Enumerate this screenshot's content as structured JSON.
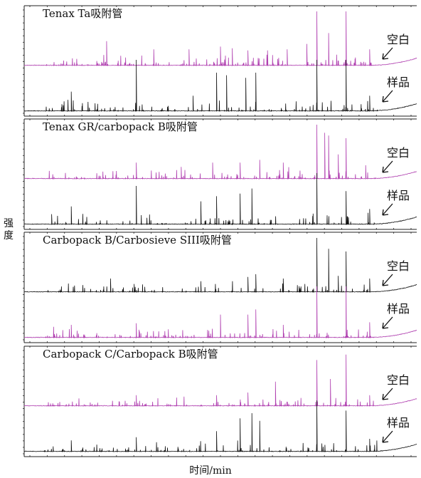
{
  "chart_data": {
    "type": "line",
    "ylabel": "强度",
    "xlabel": "时间/min",
    "grid": false,
    "colors": {
      "blank": "#b040b0",
      "sample": "#111111",
      "axis": "#222222"
    },
    "panels": [
      {
        "title": "Tenax Ta吸附管",
        "series": [
          {
            "name": "空白",
            "color": "#b040b0",
            "peaks": [
              [
                0.21,
                0.45
              ],
              [
                0.33,
                0.3
              ],
              [
                0.42,
                0.3
              ],
              [
                0.5,
                0.35
              ],
              [
                0.53,
                0.32
              ],
              [
                0.57,
                0.28
              ],
              [
                0.62,
                0.28
              ],
              [
                0.67,
                0.3
              ],
              [
                0.72,
                0.4
              ],
              [
                0.745,
                1.0
              ],
              [
                0.775,
                0.6
              ],
              [
                0.82,
                1.0
              ],
              [
                0.88,
                0.3
              ]
            ]
          },
          {
            "name": "样品",
            "color": "#111111",
            "peaks": [
              [
                0.12,
                0.38
              ],
              [
                0.285,
                1.0
              ],
              [
                0.43,
                0.3
              ],
              [
                0.49,
                0.75
              ],
              [
                0.515,
                0.7
              ],
              [
                0.565,
                0.65
              ],
              [
                0.59,
                0.75
              ],
              [
                0.745,
                1.0
              ],
              [
                0.82,
                1.0
              ],
              [
                0.88,
                0.3
              ]
            ]
          }
        ]
      },
      {
        "title": "Tenax GR/carbopack B吸附管",
        "series": [
          {
            "name": "空白",
            "color": "#b040b0",
            "peaks": [
              [
                0.285,
                0.3
              ],
              [
                0.4,
                0.22
              ],
              [
                0.48,
                0.3
              ],
              [
                0.55,
                0.3
              ],
              [
                0.6,
                0.35
              ],
              [
                0.66,
                0.3
              ],
              [
                0.745,
                1.0
              ],
              [
                0.765,
                0.85
              ],
              [
                0.775,
                0.8
              ],
              [
                0.8,
                0.45
              ],
              [
                0.82,
                0.75
              ],
              [
                0.87,
                0.25
              ]
            ]
          },
          {
            "name": "样品",
            "color": "#111111",
            "peaks": [
              [
                0.07,
                0.2
              ],
              [
                0.12,
                0.35
              ],
              [
                0.285,
                0.75
              ],
              [
                0.45,
                0.45
              ],
              [
                0.49,
                0.55
              ],
              [
                0.55,
                0.6
              ],
              [
                0.58,
                0.7
              ],
              [
                0.745,
                1.0
              ],
              [
                0.82,
                0.65
              ],
              [
                0.88,
                0.3
              ]
            ]
          }
        ]
      },
      {
        "title": "Carbopack B/Carbosieve SIII吸附管",
        "series": [
          {
            "name": "空白",
            "color": "#111111",
            "peaks": [
              [
                0.22,
                0.25
              ],
              [
                0.28,
                0.15
              ],
              [
                0.45,
                0.2
              ],
              [
                0.57,
                0.28
              ],
              [
                0.59,
                0.33
              ],
              [
                0.66,
                0.25
              ],
              [
                0.745,
                1.0
              ],
              [
                0.775,
                0.8
              ],
              [
                0.8,
                0.3
              ],
              [
                0.82,
                0.75
              ],
              [
                0.88,
                0.25
              ]
            ]
          },
          {
            "name": "样品",
            "color": "#b040b0",
            "peaks": [
              [
                0.12,
                0.25
              ],
              [
                0.285,
                0.28
              ],
              [
                0.5,
                0.45
              ],
              [
                0.57,
                0.45
              ],
              [
                0.59,
                0.55
              ],
              [
                0.66,
                0.25
              ],
              [
                0.745,
                1.0
              ],
              [
                0.82,
                1.0
              ],
              [
                0.88,
                0.3
              ]
            ]
          }
        ]
      },
      {
        "title": "Carbopack C/Carbopack B吸附管",
        "series": [
          {
            "name": "空白",
            "color": "#b040b0",
            "peaks": [
              [
                0.285,
                0.2
              ],
              [
                0.49,
                0.2
              ],
              [
                0.57,
                0.25
              ],
              [
                0.64,
                0.45
              ],
              [
                0.745,
                0.85
              ],
              [
                0.78,
                0.5
              ],
              [
                0.82,
                0.95
              ],
              [
                0.88,
                0.2
              ]
            ]
          },
          {
            "name": "样品",
            "color": "#111111",
            "peaks": [
              [
                0.12,
                0.22
              ],
              [
                0.285,
                0.28
              ],
              [
                0.49,
                0.4
              ],
              [
                0.55,
                0.65
              ],
              [
                0.58,
                0.75
              ],
              [
                0.6,
                0.6
              ],
              [
                0.745,
                1.0
              ],
              [
                0.82,
                0.8
              ],
              [
                0.88,
                0.25
              ]
            ]
          }
        ]
      }
    ]
  }
}
